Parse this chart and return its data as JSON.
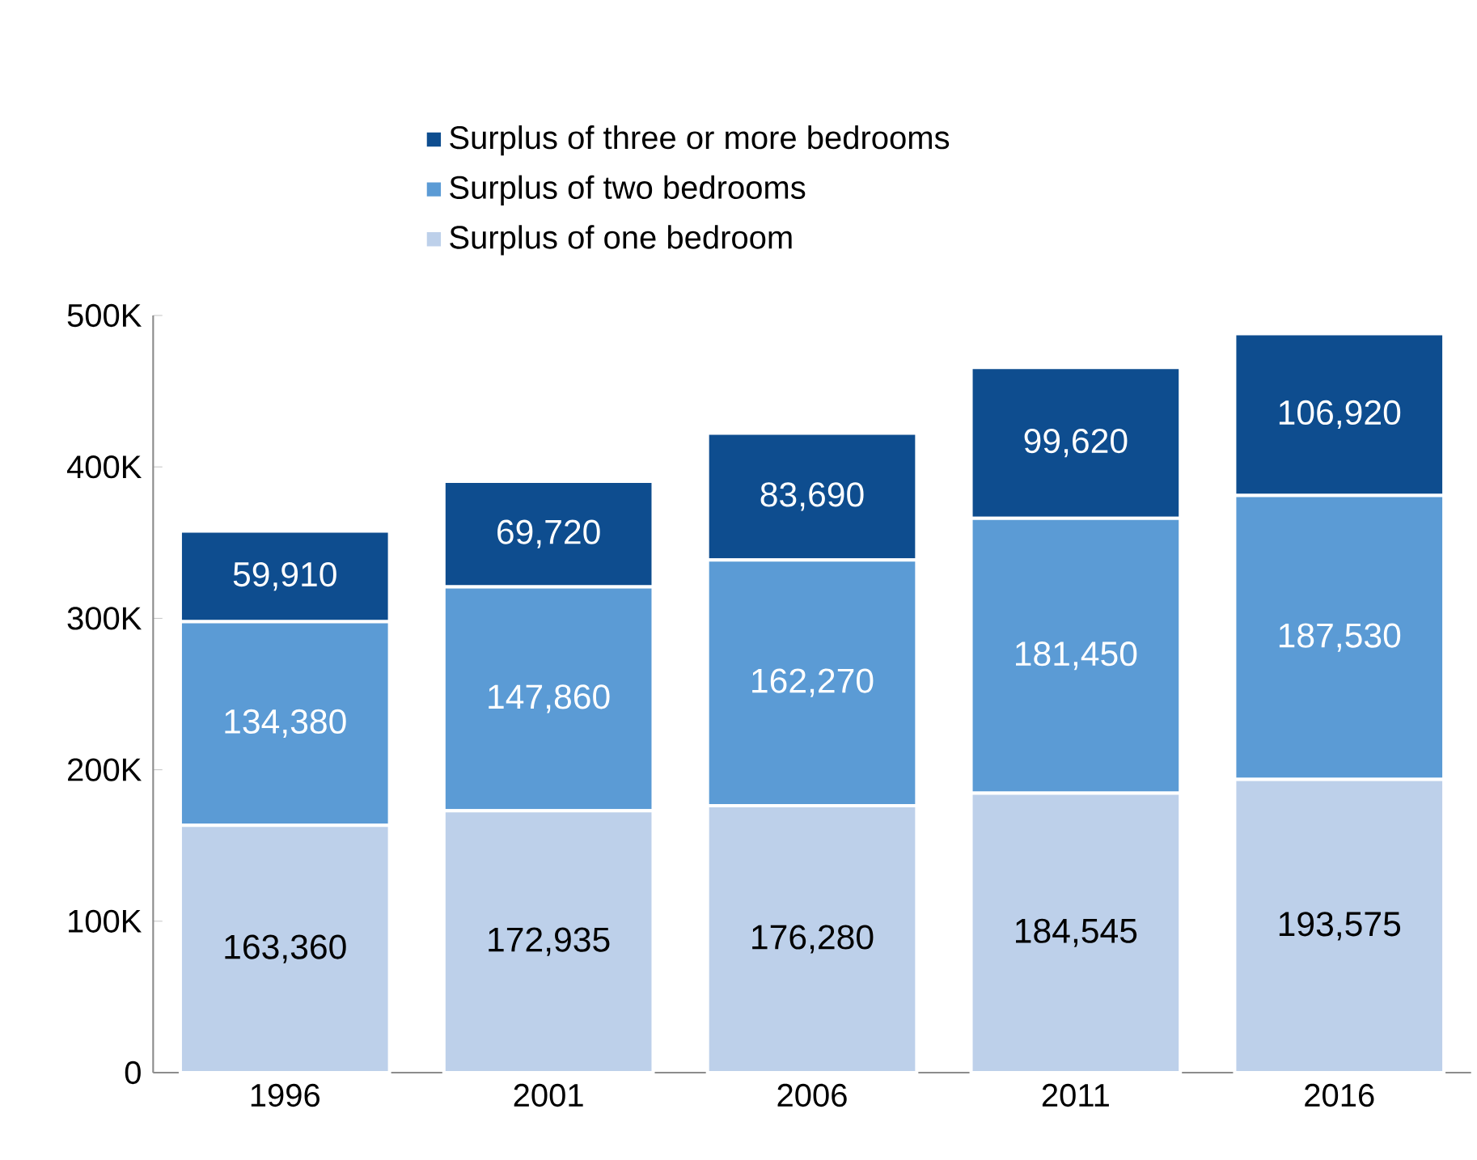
{
  "chart_data": {
    "type": "bar",
    "stacked": true,
    "categories": [
      "1996",
      "2001",
      "2006",
      "2011",
      "2016"
    ],
    "series": [
      {
        "name": "Surplus of one bedroom",
        "color": "#bdd0ea",
        "values": [
          163360,
          172935,
          176280,
          184545,
          193575
        ],
        "value_labels": [
          "163,360",
          "172,935",
          "176,280",
          "184,545",
          "193,575"
        ]
      },
      {
        "name": "Surplus of two bedrooms",
        "color": "#5b9bd5",
        "values": [
          134380,
          147860,
          162270,
          181450,
          187530
        ],
        "value_labels": [
          "134,380",
          "147,860",
          "162,270",
          "181,450",
          "187,530"
        ]
      },
      {
        "name": "Surplus of three or more bedrooms",
        "color": "#0e4d8f",
        "values": [
          59910,
          69720,
          83690,
          99620,
          106920
        ],
        "value_labels": [
          "59,910",
          "69,720",
          "83,690",
          "99,620",
          "106,920"
        ]
      }
    ],
    "ylim": [
      0,
      500000
    ],
    "yticks": [
      0,
      {
        "value": 100000,
        "label": "100K"
      },
      {
        "value": 200000,
        "label": "200K"
      },
      {
        "value": 300000,
        "label": "300K"
      },
      {
        "value": 400000,
        "label": "400K"
      },
      {
        "value": 500000,
        "label": "500K"
      }
    ],
    "grid": false,
    "legend": "top"
  }
}
